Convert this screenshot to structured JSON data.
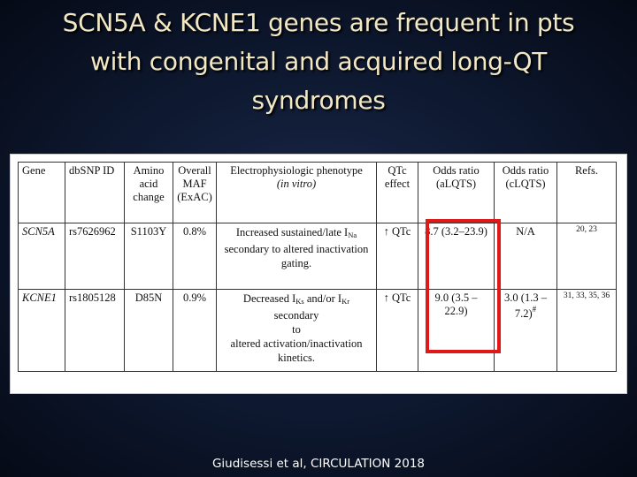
{
  "slide": {
    "title_lines": [
      "SCN5A & KCNE1 genes are frequent in pts",
      "with congenital and acquired long-QT",
      "syndromes"
    ],
    "citation": "Giudisessi et al, CIRCULATION 2018"
  },
  "table": {
    "headers": {
      "gene": "Gene",
      "dbsnp": "dbSNP ID",
      "amino_1": "Amino",
      "amino_2": "acid",
      "amino_3": "change",
      "maf_1": "Overall",
      "maf_2": "MAF",
      "maf_3": "(ExAC)",
      "pheno_1": "Electrophysiologic phenotype",
      "pheno_2": "(in vitro)",
      "qtc_1": "QTc",
      "qtc_2": "effect",
      "or_a_1": "Odds ratio",
      "or_a_2": "(aLQTS)",
      "or_c_1": "Odds ratio",
      "or_c_2": "(cLQTS)",
      "refs": "Refs."
    },
    "rows": [
      {
        "gene": "SCN5A",
        "dbsnp": "rs7626962",
        "amino": "S1103Y",
        "maf": "0.8%",
        "pheno_a": "Increased sustained/late I",
        "pheno_a_sub": "Na",
        "pheno_b": "secondary to altered inactivation",
        "pheno_c": "gating.",
        "qtc": "↑ QTc",
        "or_a": "8.7 (3.2–23.9)",
        "or_c": "N/A",
        "refs": "20, 23"
      },
      {
        "gene": "KCNE1",
        "dbsnp": "rs1805128",
        "amino": "D85N",
        "maf": "0.9%",
        "pheno_a": "Decreased I",
        "pheno_a_sub": "Ks",
        "pheno_a2": " and/or I",
        "pheno_a2_sub": "Kr",
        "pheno_a3": " secondary",
        "pheno_b": "to",
        "pheno_c": "altered activation/inactivation",
        "pheno_d": "kinetics.",
        "qtc": "↑ QTc",
        "or_a": "9.0 (3.5 – 22.9)",
        "or_c_1": "3.0 (1.3 –",
        "or_c_2": "7.2)",
        "or_c_sup": "#",
        "refs": "31, 33, 35, 36"
      }
    ]
  },
  "colors": {
    "title": "#f2e8c4",
    "highlight_box": "#e01818",
    "background": "#0f1a33"
  }
}
